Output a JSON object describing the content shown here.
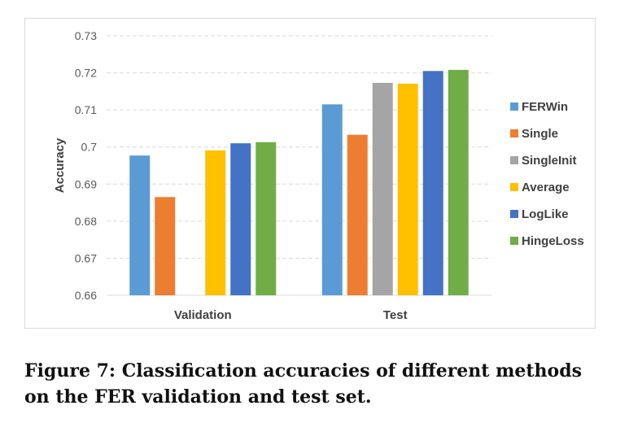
{
  "chart_data": {
    "type": "bar",
    "title": "",
    "xlabel": "",
    "ylabel": "Accuracy",
    "ylim": [
      0.66,
      0.73
    ],
    "yticks": [
      "0.66",
      "0.67",
      "0.68",
      "0.69",
      "0.7",
      "0.71",
      "0.72",
      "0.73"
    ],
    "categories": [
      "Validation",
      "Test"
    ],
    "grid": true,
    "legend_position": "right",
    "series": [
      {
        "name": "FERWin",
        "color": "#5b9bd5",
        "values": [
          0.6977,
          0.7115
        ]
      },
      {
        "name": "Single",
        "color": "#ed7d31",
        "values": [
          0.6865,
          0.7033
        ]
      },
      {
        "name": "SingleInit",
        "color": "#a5a5a5",
        "values": [
          null,
          0.7173
        ]
      },
      {
        "name": "Average",
        "color": "#ffc000",
        "values": [
          0.6991,
          0.7171
        ]
      },
      {
        "name": "LogLike",
        "color": "#4472c4",
        "values": [
          0.701,
          0.7205
        ]
      },
      {
        "name": "HingeLoss",
        "color": "#70ad47",
        "values": [
          0.7013,
          0.7208
        ]
      }
    ]
  },
  "caption": "Figure 7: Classification accuracies of different methods on the FER validation and test set."
}
